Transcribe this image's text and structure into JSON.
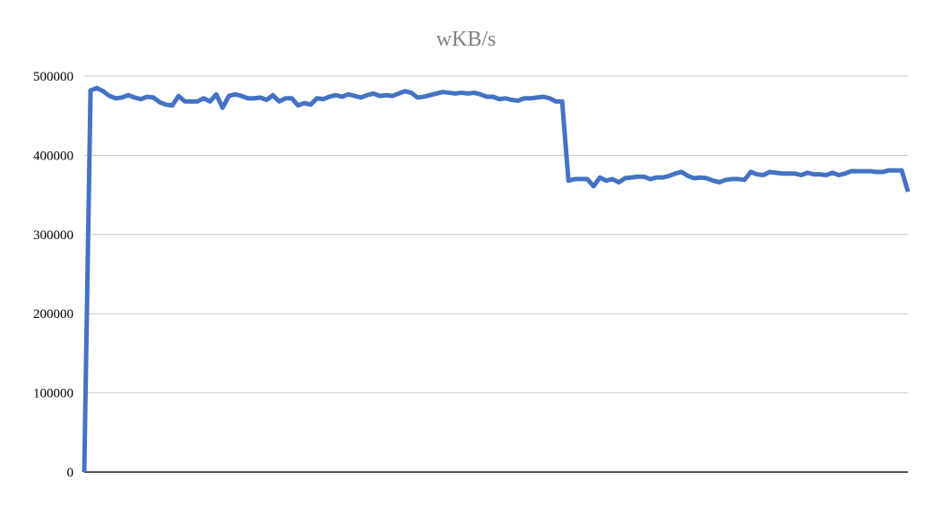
{
  "chart_data": {
    "type": "line",
    "title": "wKB/s",
    "xlabel": "",
    "ylabel": "",
    "ylim": [
      0,
      500000
    ],
    "yticks": [
      "0",
      "100000",
      "200000",
      "300000",
      "400000",
      "500000"
    ],
    "grid": true,
    "legend": "none",
    "series": [
      {
        "color": "#4472c4",
        "values": [
          0,
          482000,
          485000,
          481000,
          475000,
          472000,
          473000,
          476000,
          473000,
          471000,
          474000,
          473000,
          467000,
          464000,
          463000,
          475000,
          468000,
          468000,
          468000,
          472000,
          468000,
          477000,
          460000,
          475000,
          477000,
          475000,
          472000,
          472000,
          473000,
          470000,
          476000,
          468000,
          472000,
          472000,
          463000,
          466000,
          464000,
          472000,
          471000,
          474000,
          476000,
          474000,
          477000,
          475000,
          473000,
          476000,
          478000,
          475000,
          476000,
          475000,
          478000,
          481000,
          479000,
          473000,
          474000,
          476000,
          478000,
          480000,
          479000,
          478000,
          479000,
          478000,
          479000,
          477000,
          474000,
          474000,
          471000,
          472000,
          470000,
          469000,
          472000,
          472000,
          473000,
          474000,
          472000,
          468000,
          468000,
          368000,
          370000,
          370000,
          370000,
          361000,
          372000,
          368000,
          370000,
          366000,
          371000,
          372000,
          373000,
          373000,
          370000,
          372000,
          372000,
          374000,
          377000,
          379000,
          374000,
          371000,
          372000,
          371000,
          368000,
          366000,
          369000,
          370000,
          370000,
          369000,
          379000,
          376000,
          375000,
          379000,
          378000,
          377000,
          377000,
          377000,
          375000,
          378000,
          376000,
          376000,
          375000,
          378000,
          375000,
          377000,
          380000,
          380000,
          380000,
          380000,
          379000,
          379000,
          381000,
          381000,
          381000,
          354000
        ]
      }
    ]
  }
}
